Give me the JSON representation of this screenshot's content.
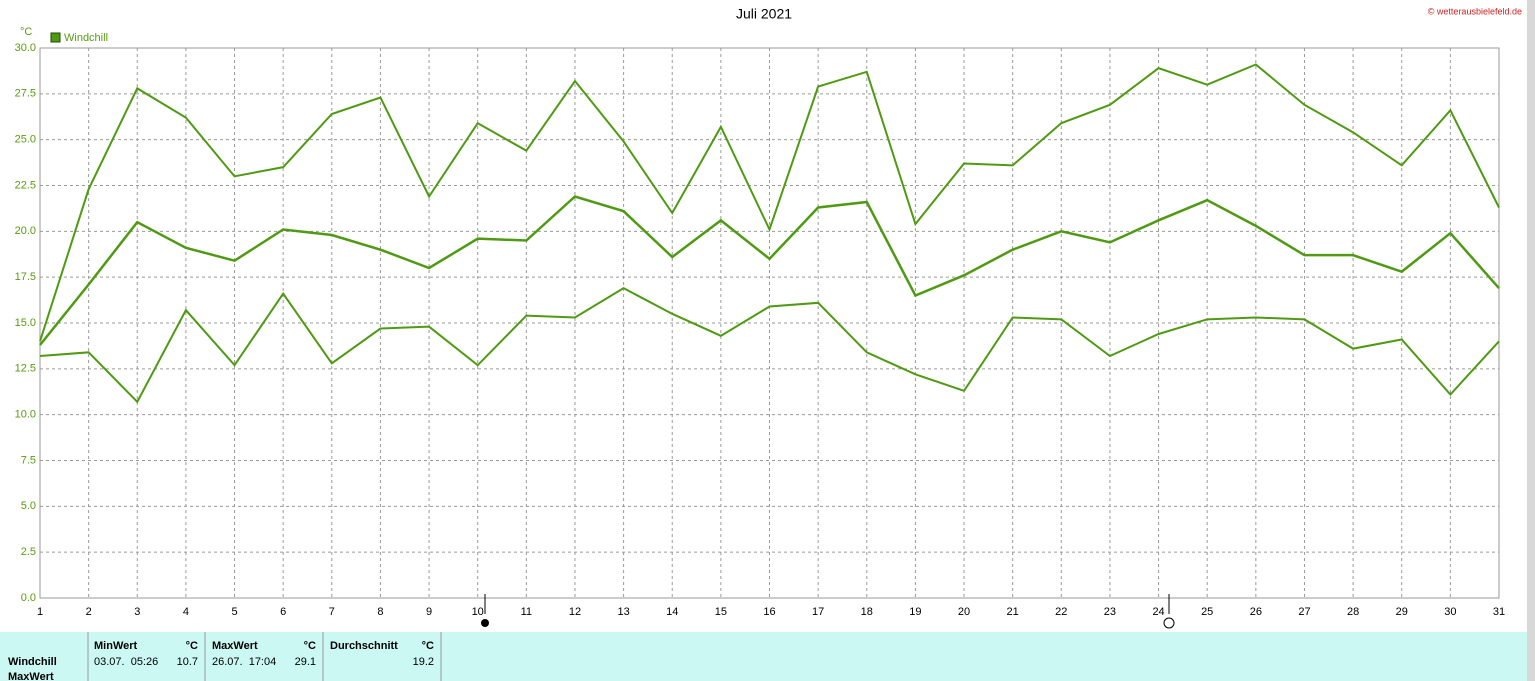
{
  "chart_data": {
    "type": "line",
    "title": "Juli 2021",
    "y_unit": "°C",
    "credit": "© wetterausbielefeld.de",
    "x": [
      1,
      2,
      3,
      4,
      5,
      6,
      7,
      8,
      9,
      10,
      11,
      12,
      13,
      14,
      15,
      16,
      17,
      18,
      19,
      20,
      21,
      22,
      23,
      24,
      25,
      26,
      27,
      28,
      29,
      30,
      31
    ],
    "xlim": [
      1,
      31
    ],
    "xticks": [
      1,
      2,
      3,
      4,
      5,
      6,
      7,
      8,
      9,
      10,
      11,
      12,
      13,
      14,
      15,
      16,
      17,
      18,
      19,
      20,
      21,
      22,
      23,
      24,
      25,
      26,
      27,
      28,
      29,
      30,
      31
    ],
    "ylim": [
      0,
      30
    ],
    "yticks": [
      {
        "value": 0,
        "label": "0.0"
      },
      2.5,
      {
        "value": 5,
        "label": "5.0"
      },
      7.5,
      {
        "value": 10,
        "label": "10.0"
      },
      12.5,
      {
        "value": 15,
        "label": "15.0"
      },
      17.5,
      {
        "value": 20,
        "label": "20.0"
      },
      22.5,
      {
        "value": 25,
        "label": "25.0"
      },
      27.5,
      {
        "value": 30,
        "label": "30.0"
      }
    ],
    "grid": true,
    "series": [
      {
        "name": "Windchill",
        "color": "#4f9a12",
        "values": [
          14.0,
          22.3,
          27.8,
          26.2,
          23.0,
          23.5,
          26.4,
          27.3,
          21.9,
          25.9,
          24.4,
          28.2,
          24.9,
          21.0,
          25.7,
          20.1,
          27.9,
          28.7,
          20.4,
          23.7,
          23.6,
          25.9,
          26.9,
          28.9,
          28.0,
          29.1,
          26.9,
          25.4,
          23.6,
          26.6,
          21.3
        ]
      },
      {
        "color": "#4f9a12",
        "values": [
          13.8,
          17.1,
          20.5,
          19.1,
          18.4,
          20.1,
          19.8,
          19.0,
          18.0,
          19.6,
          19.5,
          21.9,
          21.1,
          18.6,
          20.6,
          18.5,
          21.3,
          21.6,
          16.5,
          17.6,
          19.0,
          20.0,
          19.4,
          20.6,
          21.7,
          20.3,
          18.7,
          18.7,
          17.8,
          19.9,
          16.9
        ]
      },
      {
        "color": "#4f9a12",
        "values": [
          13.2,
          13.4,
          10.7,
          15.7,
          12.7,
          16.6,
          12.8,
          14.7,
          14.8,
          12.7,
          15.4,
          15.3,
          16.9,
          15.5,
          14.3,
          15.9,
          16.1,
          13.4,
          12.2,
          11.3,
          15.3,
          15.2,
          13.2,
          14.4,
          15.2,
          15.3,
          15.2,
          13.6,
          14.1,
          11.1,
          14.0
        ]
      }
    ]
  },
  "table": {
    "headers": [
      "MinWert",
      "°C",
      "MaxWert",
      "°C",
      "Durchschnitt",
      "°C"
    ],
    "rows": [
      [
        "Windchill",
        "03.07.  05:26",
        "10.7",
        "26.07.  17:04",
        "29.1",
        "19.2"
      ],
      [
        "MaxWert"
      ]
    ]
  }
}
